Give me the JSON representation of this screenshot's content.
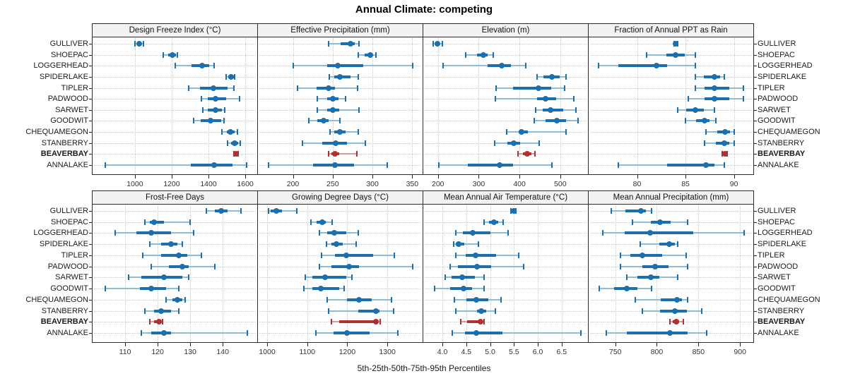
{
  "title": "Annual Climate: competing",
  "caption": "5th-25th-50th-75th-95th Percentiles",
  "sites": [
    "GULLIVER",
    "SHOEPAC",
    "LOGGERHEAD",
    "SPIDERLAKE",
    "TIPLER",
    "PADWOOD",
    "SARWET",
    "GOODWIT",
    "CHEQUAMEGON",
    "STANBERRY",
    "BEAVERBAY",
    "ANNALAKE"
  ],
  "highlight_site": "BEAVERBAY",
  "colors": {
    "blue": "#1b6fae",
    "blue_light": "#8fbcdb",
    "red": "#b03030",
    "red_light": "#d79a9a",
    "grid": "#c9c9c9",
    "border": "#2b2b2b",
    "strip_bg": "#f2f2f2",
    "tick_text": "#333333",
    "tick_mark": "#222222"
  },
  "chart_data": {
    "type": "dotplot-percentiles",
    "percentiles": [
      5,
      25,
      50,
      75,
      95
    ],
    "layout": {
      "rows": 2,
      "cols": 4
    },
    "grid": "dotted",
    "sites": [
      "GULLIVER",
      "SHOEPAC",
      "LOGGERHEAD",
      "SPIDERLAKE",
      "TIPLER",
      "PADWOOD",
      "SARWET",
      "GOODWIT",
      "CHEQUAMEGON",
      "STANBERRY",
      "BEAVERBAY",
      "ANNALAKE"
    ],
    "panels": [
      {
        "title": "Design Freeze Index (°C)",
        "xlim": [
          770,
          1665
        ],
        "tick_values": [
          1000,
          1200,
          1400,
          1600
        ],
        "tick_labels": [
          "1000",
          "1200",
          "1400",
          "1600"
        ],
        "values": {
          "GULLIVER": [
            1000,
            1013,
            1024,
            1036,
            1046
          ],
          "SHOEPAC": [
            1155,
            1180,
            1204,
            1223,
            1232
          ],
          "LOGGERHEAD": [
            1220,
            1307,
            1364,
            1402,
            1431
          ],
          "SPIDERLAKE": [
            1497,
            1507,
            1524,
            1537,
            1544
          ],
          "TIPLER": [
            1293,
            1352,
            1426,
            1505,
            1538
          ],
          "PADWOOD": [
            1360,
            1395,
            1438,
            1497,
            1569
          ],
          "SARWET": [
            1368,
            1398,
            1438,
            1473,
            1488
          ],
          "GOODWIT": [
            1318,
            1358,
            1411,
            1470,
            1484
          ],
          "CHEQUAMEGON": [
            1472,
            1500,
            1519,
            1542,
            1556
          ],
          "STANBERRY": [
            1504,
            1523,
            1544,
            1560,
            1574
          ],
          "BEAVERBAY": [
            1539,
            1545,
            1550,
            1555,
            1561
          ],
          "ANNALAKE": [
            840,
            1305,
            1430,
            1530,
            1606
          ]
        }
      },
      {
        "title": "Effective Precipitation (mm)",
        "xlim": [
          156,
          363
        ],
        "tick_values": [
          200,
          250,
          300,
          350
        ],
        "tick_labels": [
          "200",
          "250",
          "300",
          "350"
        ],
        "values": {
          "GULLIVER": [
            245,
            260,
            272,
            278,
            283
          ],
          "SHOEPAC": [
            282,
            290,
            297,
            300,
            304
          ],
          "LOGGERHEAD": [
            200,
            243,
            256,
            288,
            351
          ],
          "SPIDERLAKE": [
            246,
            252,
            259,
            272,
            282
          ],
          "TIPLER": [
            206,
            230,
            245,
            253,
            281
          ],
          "PADWOOD": [
            231,
            243,
            250,
            257,
            266
          ],
          "SARWET": [
            231,
            243,
            250,
            258,
            283
          ],
          "GOODWIT": [
            220,
            231,
            239,
            245,
            259
          ],
          "CHEQUAMEGON": [
            247,
            252,
            259,
            266,
            282
          ],
          "STANBERRY": [
            212,
            237,
            254,
            268,
            291
          ],
          "BEAVERBAY": [
            245,
            248,
            253,
            258,
            280
          ],
          "ANNALAKE": [
            169,
            225,
            253,
            277,
            319
          ]
        }
      },
      {
        "title": "Elevation (m)",
        "xlim": [
          164,
          568
        ],
        "tick_values": [
          200,
          300,
          400,
          500
        ],
        "tick_labels": [
          "200",
          "300",
          "400",
          "500"
        ],
        "values": {
          "GULLIVER": [
            188,
            194,
            198,
            204,
            211
          ],
          "SHOEPAC": [
            268,
            295,
            312,
            322,
            336
          ],
          "LOGGERHEAD": [
            213,
            321,
            357,
            379,
            415
          ],
          "SPIDERLAKE": [
            443,
            458,
            479,
            498,
            514
          ],
          "TIPLER": [
            342,
            384,
            447,
            478,
            511
          ],
          "PADWOOD": [
            341,
            444,
            464,
            490,
            533
          ],
          "SARWET": [
            440,
            457,
            476,
            507,
            539
          ],
          "GOODWIT": [
            437,
            464,
            491,
            514,
            543
          ],
          "CHEQUAMEGON": [
            368,
            398,
            405,
            420,
            514
          ],
          "STANBERRY": [
            339,
            371,
            386,
            402,
            448
          ],
          "BEAVERBAY": [
            396,
            408,
            419,
            429,
            438
          ],
          "ANNALAKE": [
            203,
            273,
            352,
            385,
            479
          ]
        }
      },
      {
        "title": "Fraction of Annual PPT as Rain",
        "xlim": [
          75,
          92
        ],
        "tick_values": [
          80,
          85,
          90
        ],
        "tick_labels": [
          "80",
          "85",
          "90"
        ],
        "values": {
          "GULLIVER": [
            83.8,
            83.9,
            84.0,
            84.1,
            84.2
          ],
          "SHOEPAC": [
            81,
            83,
            84,
            84.9,
            86
          ],
          "LOGGERHEAD": [
            76,
            78.1,
            82,
            83.1,
            86
          ],
          "SPIDERLAKE": [
            86,
            86.9,
            88,
            88.6,
            89
          ],
          "TIPLER": [
            86,
            87,
            88,
            89.5,
            91
          ],
          "PADWOOD": [
            85.3,
            87,
            88,
            89.5,
            91
          ],
          "SARWET": [
            84.2,
            85.1,
            86,
            86.9,
            88
          ],
          "GOODWIT": [
            85,
            86.1,
            87,
            87.5,
            88.1
          ],
          "CHEQUAMEGON": [
            87.1,
            88.3,
            89.1,
            89.6,
            90
          ],
          "STANBERRY": [
            87,
            88.1,
            89,
            89.5,
            90
          ],
          "BEAVERBAY": [
            88.8,
            88.9,
            89.1,
            89.2,
            89.3
          ],
          "ANNALAKE": [
            78.1,
            83.1,
            87.1,
            88,
            89
          ]
        }
      },
      {
        "title": "Frost-Free Days",
        "xlim": [
          100,
          150.6
        ],
        "tick_values": [
          110,
          120,
          130,
          140
        ],
        "tick_labels": [
          "110",
          "120",
          "130",
          "140"
        ],
        "values": {
          "GULLIVER": [
            135,
            137.5,
            139.5,
            141.5,
            145.5
          ],
          "SHOEPAC": [
            116,
            117.5,
            119,
            122,
            130
          ],
          "LOGGERHEAD": [
            107,
            113.5,
            118,
            124,
            131
          ],
          "SPIDERLAKE": [
            117.5,
            121,
            124,
            126,
            127.5
          ],
          "TIPLER": [
            115.5,
            121,
            126.5,
            129,
            133.5
          ],
          "PADWOOD": [
            118,
            123.5,
            127.5,
            129.5,
            137.5
          ],
          "SARWET": [
            111,
            115,
            122,
            127.5,
            129.5
          ],
          "GOODWIT": [
            104,
            114.5,
            118,
            122.5,
            126.5
          ],
          "CHEQUAMEGON": [
            122.5,
            124.5,
            126,
            127.5,
            128.5
          ],
          "STANBERRY": [
            116,
            119,
            121,
            124,
            126.5
          ],
          "BEAVERBAY": [
            117.5,
            119,
            120.5,
            121,
            121.5
          ],
          "ANNALAKE": [
            115,
            118,
            122,
            124,
            147.5
          ]
        }
      },
      {
        "title": "Growing Degree Days (°C)",
        "xlim": [
          977,
          1388
        ],
        "tick_values": [
          1000,
          1100,
          1200,
          1300
        ],
        "tick_labels": [
          "1000",
          "1100",
          "1200",
          "1300"
        ],
        "values": {
          "GULLIVER": [
            1003,
            1008,
            1023,
            1037,
            1074
          ],
          "SHOEPAC": [
            1110,
            1124,
            1137,
            1147,
            1162
          ],
          "LOGGERHEAD": [
            1131,
            1150,
            1167,
            1197,
            1228
          ],
          "SPIDERLAKE": [
            1148,
            1160,
            1173,
            1189,
            1223
          ],
          "TIPLER": [
            1135,
            1170,
            1198,
            1264,
            1318
          ],
          "PADWOOD": [
            1130,
            1160,
            1204,
            1230,
            1364
          ],
          "SARWET": [
            1095,
            1112,
            1144,
            1198,
            1212
          ],
          "GOODWIT": [
            1092,
            1112,
            1134,
            1180,
            1193
          ],
          "CHEQUAMEGON": [
            1150,
            1200,
            1229,
            1261,
            1310
          ],
          "STANBERRY": [
            1153,
            1228,
            1271,
            1280,
            1315
          ],
          "BEAVERBAY": [
            1161,
            1180,
            1272,
            1277,
            1283
          ],
          "ANNALAKE": [
            1121,
            1165,
            1200,
            1255,
            1327
          ]
        }
      },
      {
        "title": "Mean Annual Air Temperature (°C)",
        "xlim": [
          3.6,
          7.05
        ],
        "tick_values": [
          4.0,
          4.5,
          5.0,
          5.5,
          6.0,
          6.5
        ],
        "tick_labels": [
          "4.0",
          "4.5",
          "5.0",
          "5.5",
          "6.0",
          "6.5"
        ],
        "values": {
          "GULLIVER": [
            5.43,
            5.46,
            5.49,
            5.51,
            5.54
          ],
          "SHOEPAC": [
            4.88,
            4.97,
            5.08,
            5.17,
            5.28
          ],
          "LOGGERHEAD": [
            4.28,
            4.43,
            4.64,
            5.0,
            5.37
          ],
          "SPIDERLAKE": [
            4.23,
            4.28,
            4.34,
            4.46,
            4.76
          ],
          "TIPLER": [
            4.28,
            4.49,
            4.69,
            5.12,
            5.6
          ],
          "PADWOOD": [
            4.16,
            4.32,
            4.72,
            5.02,
            5.7
          ],
          "SARWET": [
            4.06,
            4.19,
            4.42,
            4.68,
            4.87
          ],
          "GOODWIT": [
            3.84,
            4.17,
            4.44,
            4.62,
            4.88
          ],
          "CHEQUAMEGON": [
            4.25,
            4.51,
            4.71,
            4.96,
            5.23
          ],
          "STANBERRY": [
            4.28,
            4.72,
            4.82,
            4.92,
            5.11
          ],
          "BEAVERBAY": [
            4.39,
            4.52,
            4.8,
            4.83,
            4.87
          ],
          "ANNALAKE": [
            4.21,
            4.48,
            4.71,
            5.26,
            6.9
          ]
        }
      },
      {
        "title": "Mean Annual Precipitation (mm)",
        "xlim": [
          718,
          916
        ],
        "tick_values": [
          750,
          800,
          850,
          900
        ],
        "tick_labels": [
          "750",
          "800",
          "850",
          "900"
        ],
        "values": {
          "GULLIVER": [
            745,
            762,
            781,
            787,
            794
          ],
          "SHOEPAC": [
            771,
            793,
            804,
            817,
            837
          ],
          "LOGGERHEAD": [
            735,
            761,
            792,
            844,
            905
          ],
          "SPIDERLAKE": [
            780,
            803,
            815,
            822,
            825
          ],
          "TIPLER": [
            756,
            768,
            783,
            806,
            835
          ],
          "PADWOOD": [
            756,
            783,
            798,
            814,
            837
          ],
          "SARWET": [
            764,
            777,
            793,
            803,
            825
          ],
          "GOODWIT": [
            731,
            749,
            764,
            777,
            794
          ],
          "CHEQUAMEGON": [
            774,
            805,
            824,
            830,
            837
          ],
          "STANBERRY": [
            783,
            804,
            822,
            836,
            854
          ],
          "BEAVERBAY": [
            816,
            819,
            823,
            827,
            832
          ],
          "ANNALAKE": [
            739,
            764,
            816,
            837,
            860
          ]
        }
      }
    ]
  }
}
